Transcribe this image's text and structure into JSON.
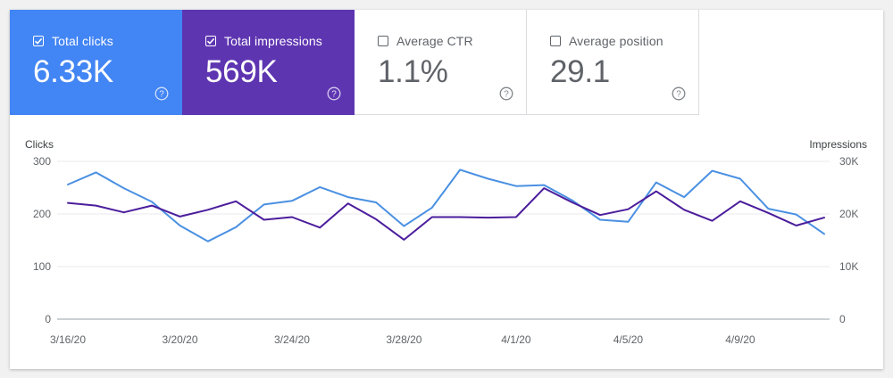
{
  "tiles": [
    {
      "label": "Total clicks",
      "value": "6.33K",
      "checked": true,
      "color": "#4285f4"
    },
    {
      "label": "Total impressions",
      "value": "569K",
      "checked": true,
      "color": "#5e35b1"
    },
    {
      "label": "Average CTR",
      "value": "1.1%",
      "checked": false,
      "color": "#ffffff"
    },
    {
      "label": "Average position",
      "value": "29.1",
      "checked": false,
      "color": "#ffffff"
    }
  ],
  "chart_data": {
    "type": "line",
    "y_left_label": "Clicks",
    "y_right_label": "Impressions",
    "y_left_ticks": [
      "300",
      "200",
      "100",
      "0"
    ],
    "y_right_ticks": [
      "30K",
      "20K",
      "10K",
      "0"
    ],
    "y_left_lim": [
      0,
      300
    ],
    "y_right_lim": [
      0,
      30000
    ],
    "x_tick_labels": [
      "3/16/20",
      "3/20/20",
      "3/24/20",
      "3/28/20",
      "4/1/20",
      "4/5/20",
      "4/9/20"
    ],
    "x_tick_index": [
      0,
      4,
      8,
      12,
      16,
      20,
      24
    ],
    "grid": true,
    "series": [
      {
        "name": "Total clicks",
        "axis": "left",
        "color": "#4a90e2",
        "values": [
          256,
          279,
          249,
          223,
          178,
          148,
          175,
          218,
          225,
          251,
          232,
          222,
          177,
          212,
          284,
          267,
          253,
          255,
          226,
          189,
          185,
          260,
          232,
          282,
          267,
          210,
          199,
          162
        ]
      },
      {
        "name": "Total impressions",
        "axis": "right",
        "color": "#4b1d9c",
        "values": [
          22100,
          21600,
          20300,
          21600,
          19500,
          20800,
          22400,
          18900,
          19400,
          17400,
          22000,
          19000,
          15100,
          19400,
          19400,
          19300,
          19400,
          24900,
          22200,
          19800,
          20900,
          24300,
          20800,
          18700,
          22400,
          20200,
          17800,
          19300
        ]
      }
    ]
  }
}
